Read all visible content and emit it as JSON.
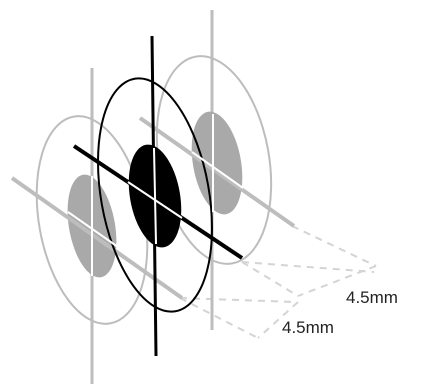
{
  "diagram": {
    "layers": [
      {
        "role": "back",
        "stroke": "#bdbdbd",
        "fill": "#a9a9a9"
      },
      {
        "role": "center",
        "stroke": "#000000",
        "fill": "#000000"
      },
      {
        "role": "front",
        "stroke": "#bdbdbd",
        "fill": "#a9a9a9"
      }
    ],
    "spacing_labels": [
      {
        "text": "4.5mm"
      },
      {
        "text": "4.5mm"
      }
    ],
    "guide_color": "#d4d4d4"
  }
}
